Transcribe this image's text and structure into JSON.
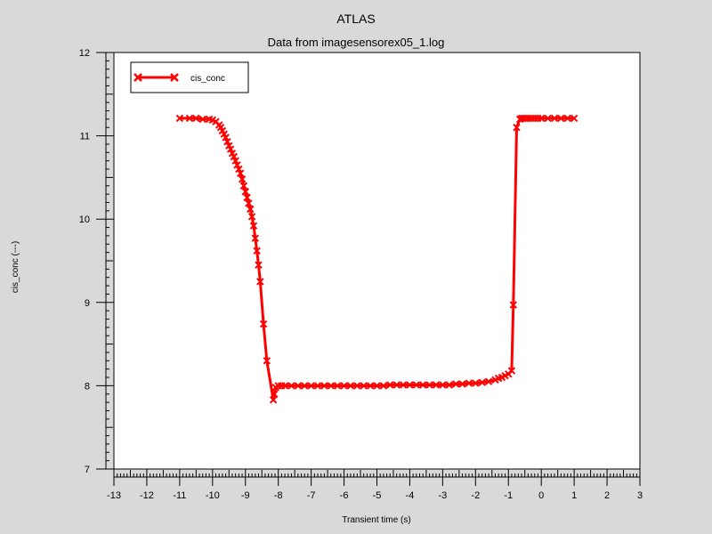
{
  "chart_data": {
    "type": "line",
    "title": "ATLAS",
    "subtitle": "Data from imagesensorex05_1.log",
    "xlabel": "Transient time (s)",
    "ylabel": "cis_conc (---)",
    "xlim": [
      -13,
      3
    ],
    "ylim": [
      7,
      12
    ],
    "x_ticks": [
      "-13",
      "-12",
      "-11",
      "-10",
      "-9",
      "-8",
      "-7",
      "-6",
      "-5",
      "-4",
      "-3",
      "-2",
      "-1",
      "0",
      "1",
      "2",
      "3"
    ],
    "y_ticks": [
      "7",
      "8",
      "9",
      "10",
      "11",
      "12"
    ],
    "grid": false,
    "legend_position": "top-left",
    "colors": {
      "series": "#ff0000",
      "background": "#d9d9d9",
      "plot_area": "#ffffff"
    },
    "series": [
      {
        "name": "cis_conc",
        "x": [
          -11.0,
          -10.7,
          -10.5,
          -10.3,
          -10.1,
          -10.0,
          -9.9,
          -9.8,
          -9.75,
          -9.7,
          -9.65,
          -9.6,
          -9.55,
          -9.5,
          -9.45,
          -9.4,
          -9.35,
          -9.3,
          -9.25,
          -9.2,
          -9.15,
          -9.1,
          -9.05,
          -9.0,
          -8.95,
          -8.9,
          -8.85,
          -8.8,
          -8.75,
          -8.7,
          -8.65,
          -8.6,
          -8.55,
          -8.45,
          -8.35,
          -8.15,
          -8.12,
          -8.08,
          -8.0,
          -7.9,
          -7.8,
          -7.6,
          -7.4,
          -7.2,
          -7.0,
          -6.8,
          -6.6,
          -6.4,
          -6.2,
          -6.0,
          -5.8,
          -5.6,
          -5.4,
          -5.2,
          -5.0,
          -4.8,
          -4.6,
          -4.4,
          -4.2,
          -4.0,
          -3.8,
          -3.6,
          -3.4,
          -3.2,
          -3.0,
          -2.8,
          -2.6,
          -2.4,
          -2.2,
          -2.0,
          -1.8,
          -1.6,
          -1.4,
          -1.3,
          -1.2,
          -1.1,
          -1.0,
          -0.9,
          -0.85,
          -0.75,
          -0.65,
          -0.6,
          -0.55,
          -0.5,
          -0.45,
          -0.4,
          -0.3,
          -0.2,
          -0.1,
          0.0,
          0.2,
          0.4,
          0.6,
          0.8,
          1.0
        ],
        "y": [
          11.21,
          11.21,
          11.21,
          11.2,
          11.2,
          11.19,
          11.17,
          11.13,
          11.1,
          11.06,
          11.02,
          10.98,
          10.93,
          10.88,
          10.84,
          10.79,
          10.75,
          10.7,
          10.65,
          10.6,
          10.55,
          10.48,
          10.4,
          10.33,
          10.26,
          10.19,
          10.12,
          10.03,
          9.92,
          9.77,
          9.62,
          9.45,
          9.25,
          8.74,
          8.3,
          7.83,
          7.9,
          7.98,
          8.0,
          8.0,
          8.0,
          8.0,
          8.0,
          8.0,
          8.0,
          8.0,
          8.0,
          8.0,
          8.0,
          8.0,
          8.0,
          8.0,
          8.0,
          8.0,
          8.0,
          8.0,
          8.01,
          8.01,
          8.01,
          8.01,
          8.01,
          8.01,
          8.01,
          8.01,
          8.01,
          8.01,
          8.02,
          8.02,
          8.03,
          8.03,
          8.04,
          8.05,
          8.07,
          8.09,
          8.1,
          8.12,
          8.14,
          8.18,
          8.97,
          11.1,
          11.2,
          11.21,
          11.21,
          11.21,
          11.21,
          11.21,
          11.21,
          11.21,
          11.21,
          11.21,
          11.21,
          11.21,
          11.21,
          11.21,
          11.21
        ]
      }
    ]
  }
}
